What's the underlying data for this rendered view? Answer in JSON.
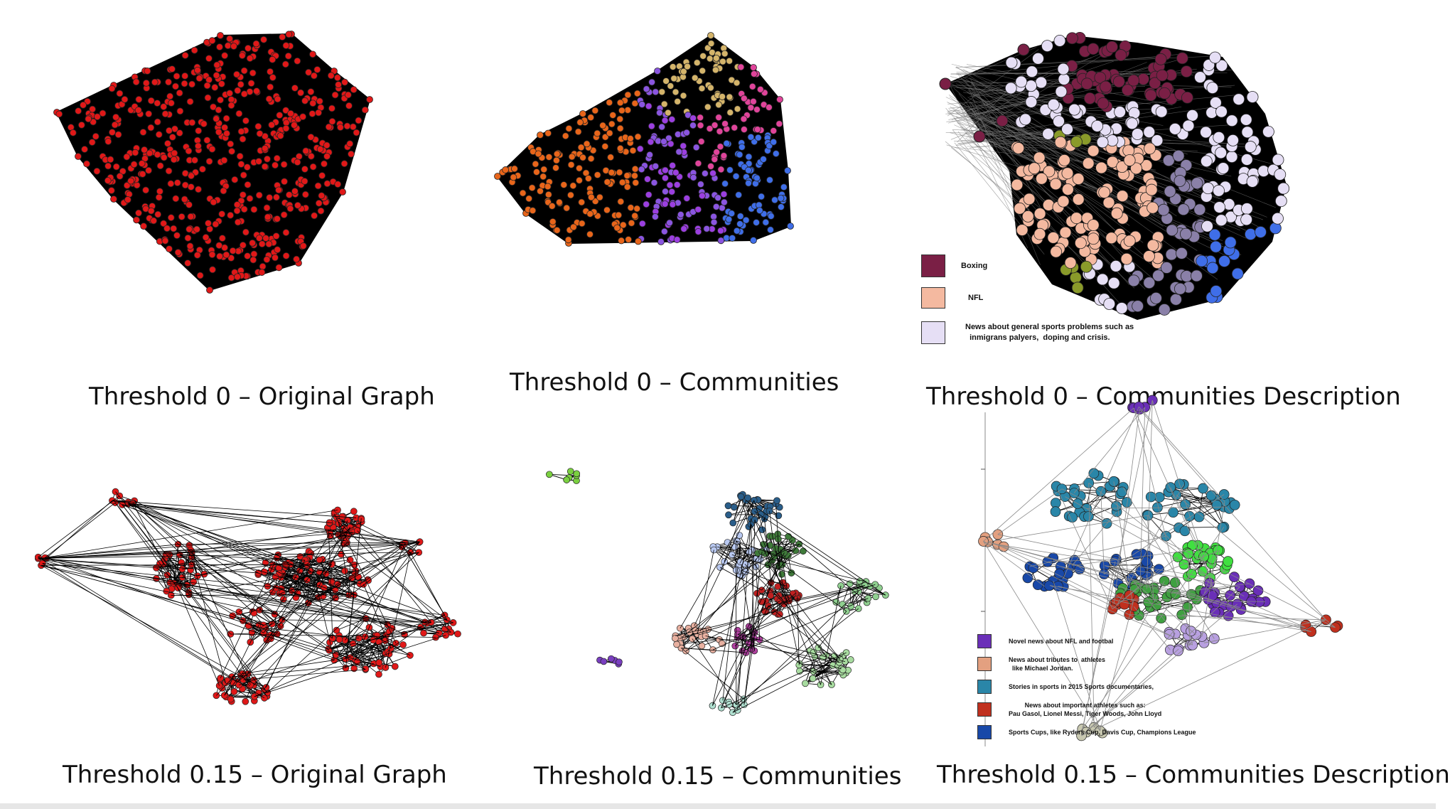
{
  "panels": [
    {
      "id": "p1",
      "caption": "Threshold 0 – Original Graph"
    },
    {
      "id": "p2",
      "caption": "Threshold 0 – Communities"
    },
    {
      "id": "p3",
      "caption": "Threshold 0 – Communities Description"
    },
    {
      "id": "p4",
      "caption": "Threshold 0.15 – Original Graph"
    },
    {
      "id": "p5",
      "caption": "Threshold 0.15 – Communities"
    },
    {
      "id": "p6",
      "caption": "Threshold 0.15 – Communities Description"
    }
  ],
  "legend_top": [
    {
      "label": "Boxing",
      "color": "#7a1f45"
    },
    {
      "label": "NFL",
      "color": "#f4b9a0"
    },
    {
      "label": "News about general sports problems such as\n  inmigrans palyers,  doping and crisis.",
      "color": "#e6dff5"
    }
  ],
  "legend_bottom": [
    {
      "label": "Novel news about NFL and footbal",
      "color": "#6a2fb8"
    },
    {
      "label": "News about tributes to  athletes\n  like Michael Jordan.",
      "color": "#e3a080"
    },
    {
      "label": "Stories in sports in 2015 Sports documentaries,",
      "color": "#2a86a8"
    },
    {
      "label": "News about important athletes such as:\nPau Gasol, Lionel Messi, Tiger Woods, John Lloyd",
      "color": "#c0301e"
    },
    {
      "label": "Sports Cups, like Ryders Cup, Davis Cup, Champions League",
      "color": "#1848a8"
    }
  ],
  "colors": {
    "node_red": "#e01818",
    "edge": "#000000",
    "community_palette_0": [
      "#e8651a",
      "#9b3fe0",
      "#d4b46a",
      "#e0449a",
      "#3f6ee8",
      "#8a55e0"
    ],
    "community_palette_15": [
      "#2a5e8a",
      "#b8c8f0",
      "#3f7a3a",
      "#e8b0a0",
      "#c02020",
      "#b040a0",
      "#90d090",
      "#a8dca0",
      "#b0e0d0",
      "#7ad040",
      "#7a3fc0"
    ]
  }
}
